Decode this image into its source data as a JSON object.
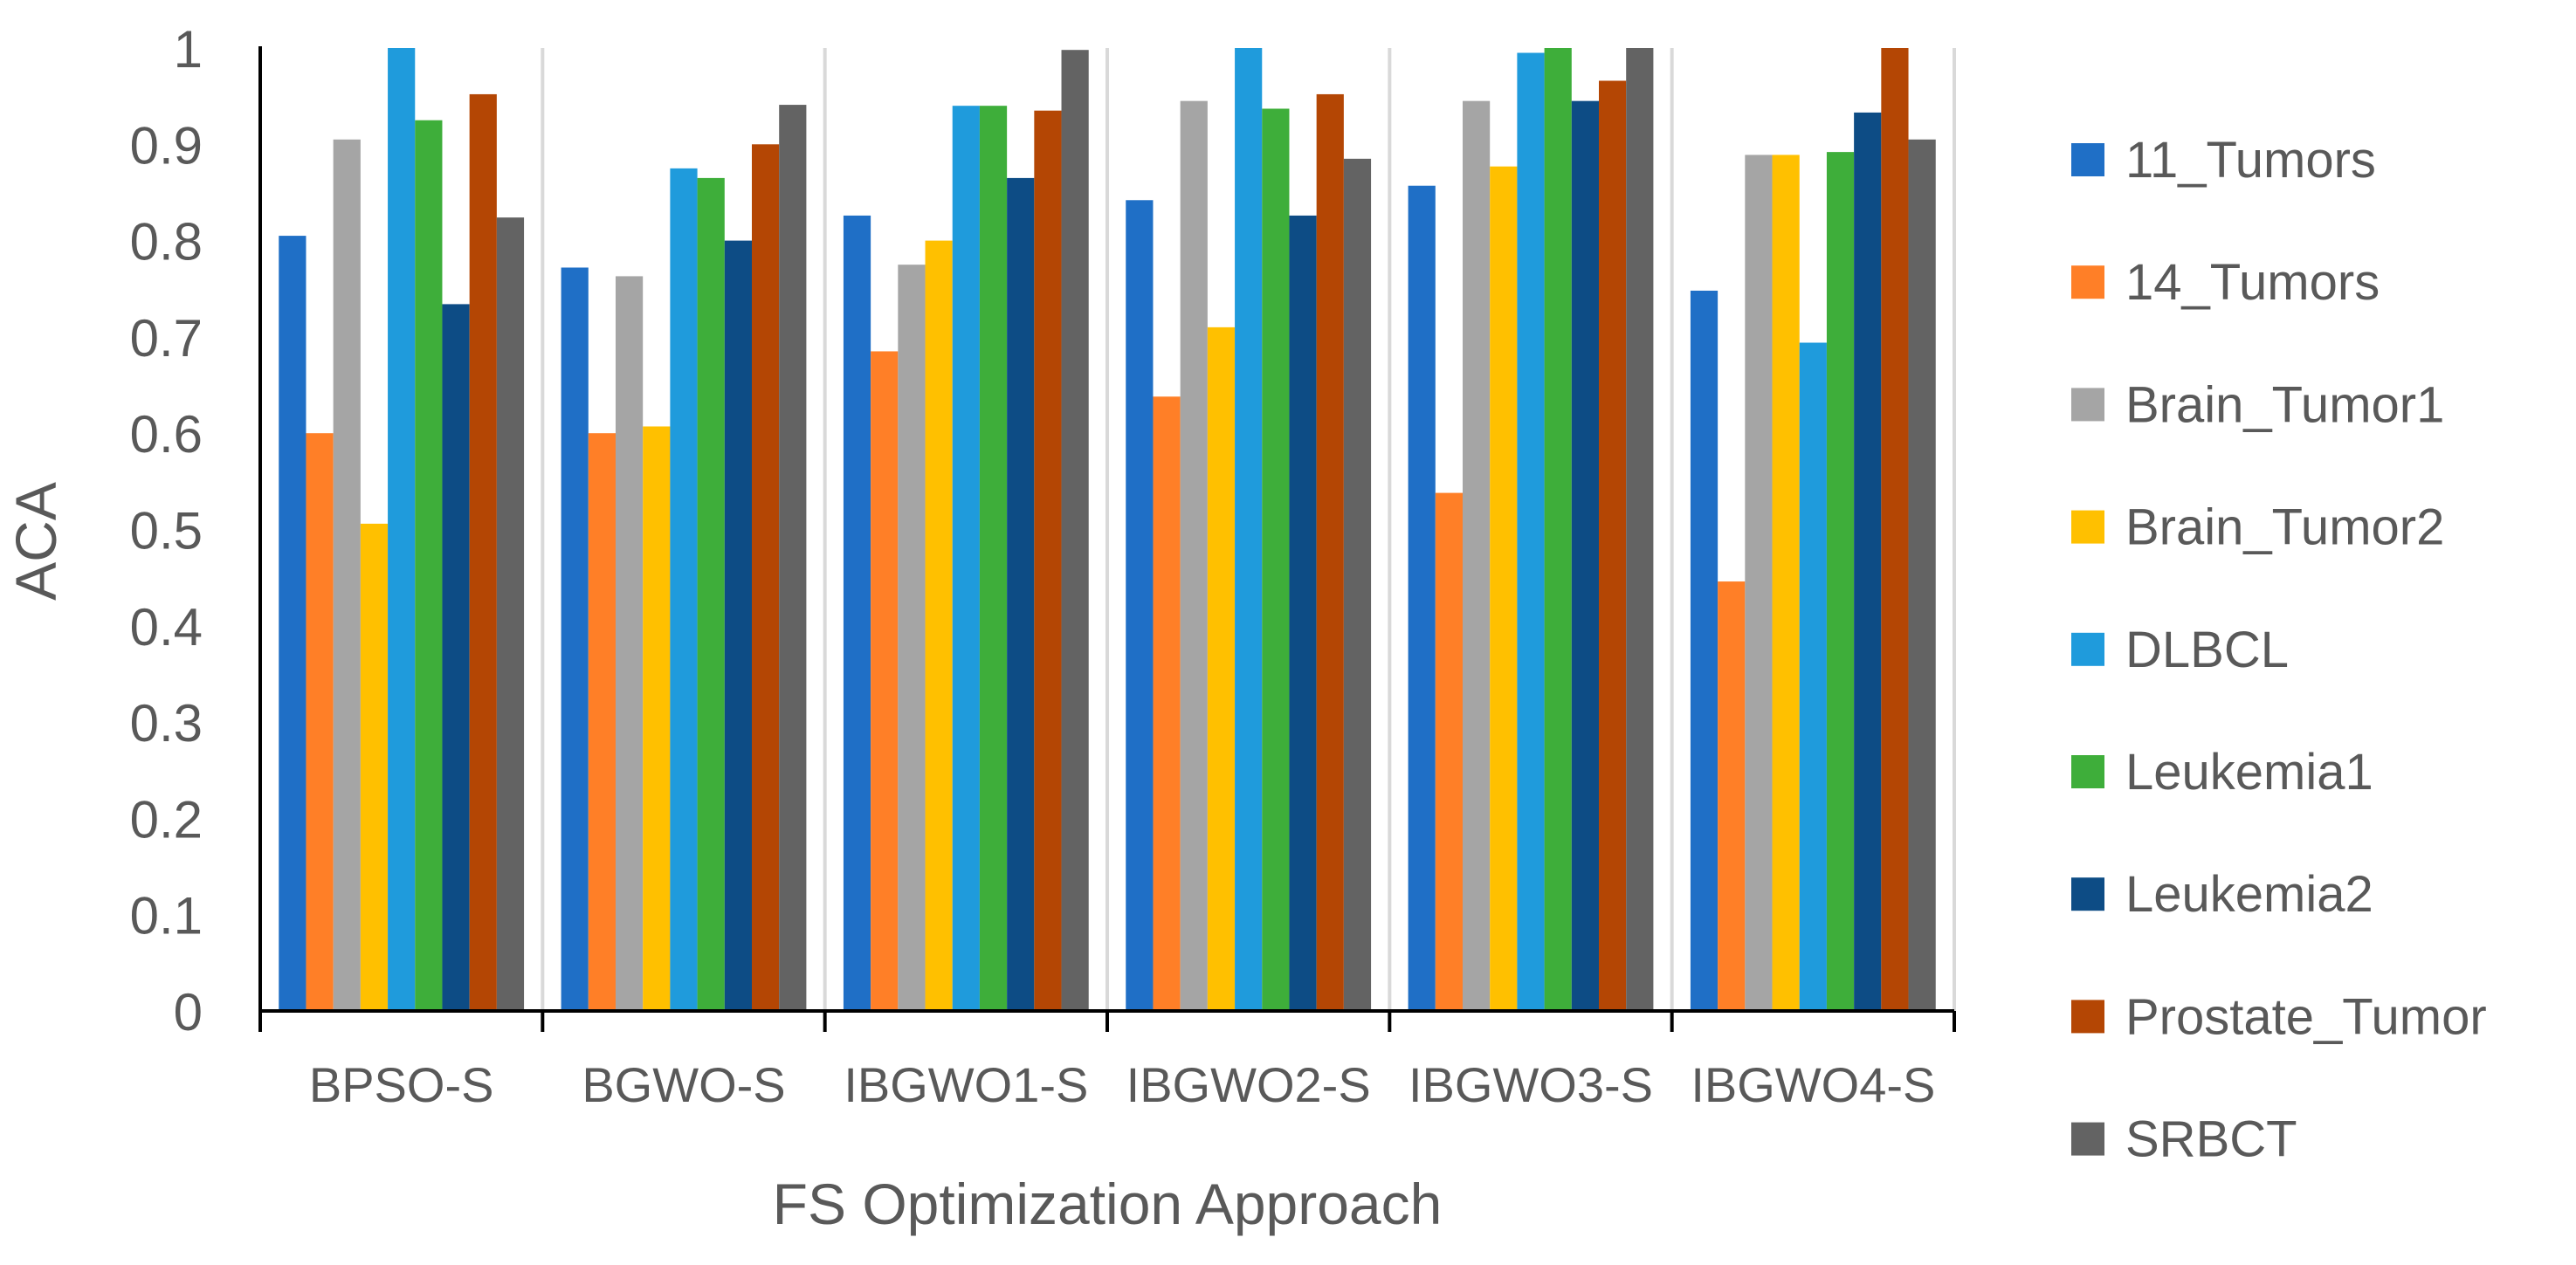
{
  "chart_data": {
    "type": "bar",
    "title": "",
    "xlabel": "FS Optimization Approach",
    "ylabel": "ACA",
    "ylim": [
      0,
      1
    ],
    "yticks": [
      "0",
      "0.1",
      "0.2",
      "0.3",
      "0.4",
      "0.5",
      "0.6",
      "0.7",
      "0.8",
      "0.9",
      "1"
    ],
    "categories": [
      "BPSO-S",
      "BGWO-S",
      "IBGWO1-S",
      "IBGWO2-S",
      "IBGWO3-S",
      "IBGWO4-S"
    ],
    "legend_position": "right",
    "series": [
      {
        "name": "11_Tumors",
        "color": "#1F6FC6",
        "values": [
          0.805,
          0.772,
          0.826,
          0.842,
          0.857,
          0.748
        ]
      },
      {
        "name": "14_Tumors",
        "color": "#FF7F27",
        "values": [
          0.6,
          0.6,
          0.685,
          0.638,
          0.538,
          0.446
        ]
      },
      {
        "name": "Brain_Tumor1",
        "color": "#A5A5A5",
        "values": [
          0.905,
          0.763,
          0.775,
          0.945,
          0.945,
          0.889
        ]
      },
      {
        "name": "Brain_Tumor2",
        "color": "#FFC000",
        "values": [
          0.506,
          0.607,
          0.8,
          0.71,
          0.877,
          0.889
        ]
      },
      {
        "name": "DLBCL",
        "color": "#1F9BDC",
        "values": [
          1.0,
          0.875,
          0.94,
          1.0,
          0.995,
          0.694
        ]
      },
      {
        "name": "Leukemia1",
        "color": "#3EAE3A",
        "values": [
          0.925,
          0.865,
          0.94,
          0.937,
          1.0,
          0.892
        ]
      },
      {
        "name": "Leukemia2",
        "color": "#0D4C85",
        "values": [
          0.734,
          0.8,
          0.865,
          0.826,
          0.945,
          0.933
        ]
      },
      {
        "name": "Prostate_Tumor",
        "color": "#B44604",
        "values": [
          0.952,
          0.9,
          0.935,
          0.952,
          0.966,
          1.0
        ]
      },
      {
        "name": "SRBCT",
        "color": "#636363",
        "values": [
          0.824,
          0.941,
          0.998,
          0.885,
          1.0,
          0.905
        ]
      }
    ]
  }
}
